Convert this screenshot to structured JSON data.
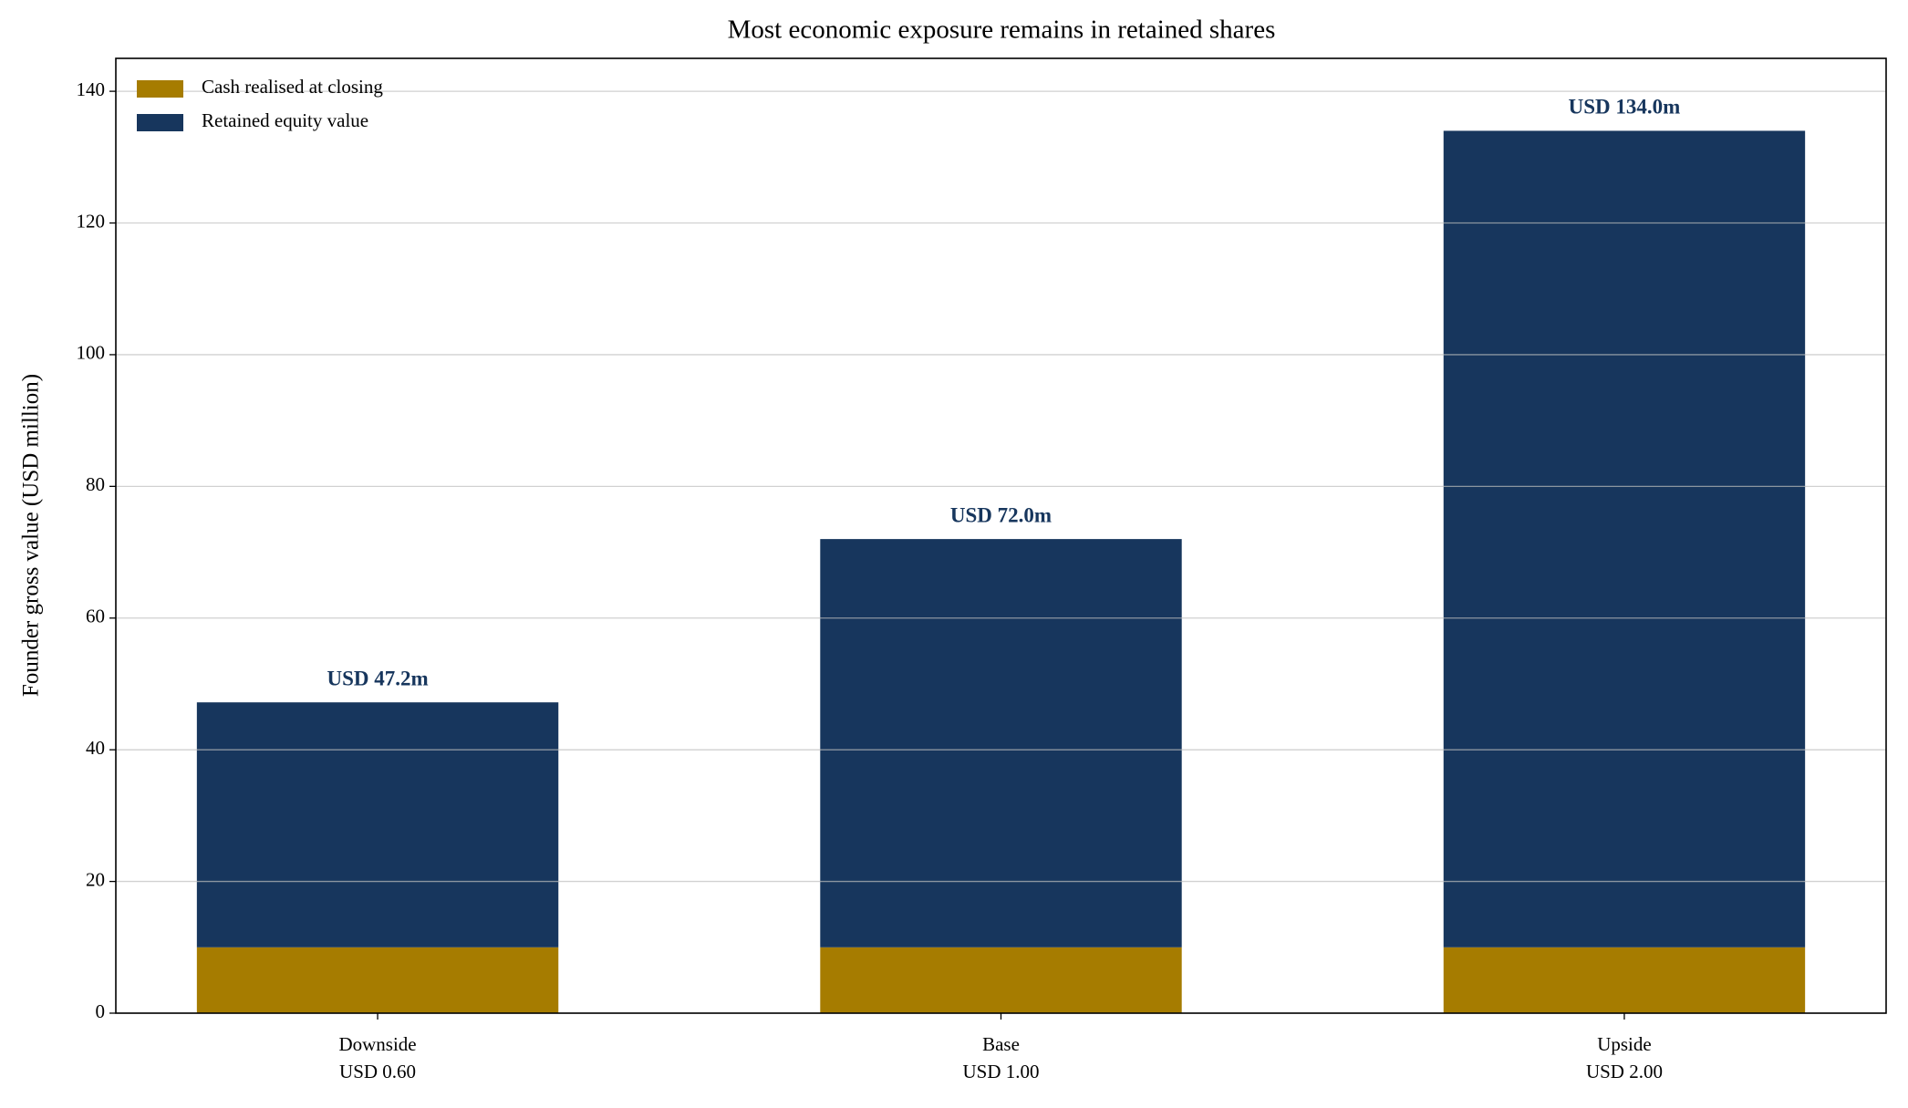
{
  "chart_data": {
    "type": "stacked_bar",
    "title": "Most economic exposure remains in retained shares",
    "y_label": "Founder gross value (USD million)",
    "categories": [
      [
        "Downside",
        "USD 0.60"
      ],
      [
        "Base",
        "USD 1.00"
      ],
      [
        "Upside",
        "USD 2.00"
      ]
    ],
    "series": [
      {
        "name": "Cash realised at closing",
        "color": "#a67c00",
        "values": [
          10,
          10,
          10
        ]
      },
      {
        "name": "Retained equity value",
        "color": "#17365d",
        "values": [
          37.2,
          62,
          124
        ]
      }
    ],
    "totals": {
      "values": [
        47.2,
        72.0,
        134.0
      ],
      "value_labels": [
        "USD 47.2m",
        "USD 72.0m",
        "USD 134.0m"
      ],
      "color": "#17365d"
    },
    "ylim": [
      0,
      145
    ],
    "yticks": [
      0,
      20,
      40,
      60,
      80,
      100,
      120,
      140
    ],
    "grid": true,
    "legend": "upper-left"
  }
}
